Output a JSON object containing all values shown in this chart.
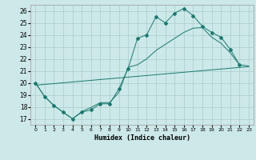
{
  "title": "",
  "xlabel": "Humidex (Indice chaleur)",
  "bg_color": "#cce8e8",
  "line_color": "#1a7a6e",
  "grid_color": "#aacccc",
  "xlim": [
    -0.5,
    23.5
  ],
  "ylim": [
    16.5,
    26.5
  ],
  "xticks": [
    0,
    1,
    2,
    3,
    4,
    5,
    6,
    7,
    8,
    9,
    10,
    11,
    12,
    13,
    14,
    15,
    16,
    17,
    18,
    19,
    20,
    21,
    22,
    23
  ],
  "yticks": [
    17,
    18,
    19,
    20,
    21,
    22,
    23,
    24,
    25,
    26
  ],
  "line1_x": [
    0,
    1,
    2,
    3,
    4,
    5,
    6,
    7,
    8,
    9,
    10,
    11,
    12,
    13,
    14,
    15,
    16,
    17,
    18,
    19,
    20,
    21,
    22
  ],
  "line1_y": [
    20.0,
    18.85,
    18.1,
    17.55,
    17.0,
    17.55,
    17.75,
    18.25,
    18.25,
    19.5,
    21.2,
    23.7,
    24.0,
    25.5,
    25.0,
    25.8,
    26.2,
    25.6,
    24.7,
    24.2,
    23.8,
    22.8,
    21.5
  ],
  "line2_x": [
    0,
    1,
    2,
    3,
    4,
    5,
    6,
    7,
    8,
    9,
    10,
    11,
    12,
    13,
    14,
    15,
    16,
    17,
    18,
    19,
    20,
    21,
    22,
    23
  ],
  "line2_y": [
    20.0,
    18.85,
    18.1,
    17.55,
    17.0,
    17.6,
    17.95,
    18.35,
    18.35,
    19.2,
    21.3,
    21.5,
    22.0,
    22.7,
    23.2,
    23.7,
    24.2,
    24.55,
    24.6,
    23.8,
    23.3,
    22.5,
    21.5,
    21.4
  ],
  "line3_x": [
    0,
    23
  ],
  "line3_y": [
    19.8,
    21.35
  ]
}
